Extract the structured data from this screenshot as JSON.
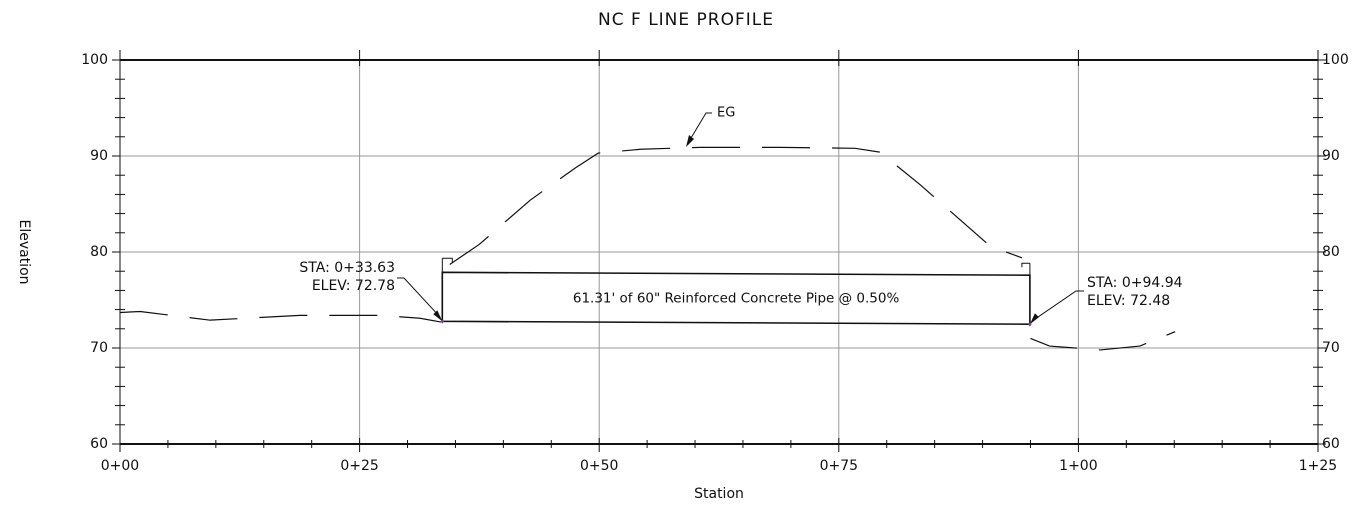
{
  "chart_data": {
    "type": "profile",
    "title": "NC F LINE PROFILE",
    "xlabel": "Station",
    "ylabel": "Elevation",
    "xlim": [
      0,
      125
    ],
    "xticks": [
      {
        "value": 0,
        "label": "0+00"
      },
      {
        "value": 25,
        "label": "0+25"
      },
      {
        "value": 50,
        "label": "0+50"
      },
      {
        "value": 75,
        "label": "0+75"
      },
      {
        "value": 100,
        "label": "1+00"
      },
      {
        "value": 125,
        "label": "1+25"
      }
    ],
    "ylim": [
      60,
      100
    ],
    "yticks": [
      60,
      70,
      80,
      90,
      100
    ],
    "grid": true,
    "series": [
      {
        "name": "EG",
        "color": "#111111",
        "x": [
          0,
          2.1,
          9.4,
          18.8,
          27.1,
          31.3,
          33.5,
          null,
          34.4,
          37.5,
          42.8,
          47.5,
          49.9,
          54.3,
          60.5,
          68.9,
          76.7,
          79.3,
          83.5,
          90.8,
          94.1,
          null,
          95.0,
          97.0,
          102.3,
          106.4,
          110.1
        ],
        "values": [
          73.7,
          73.8,
          72.9,
          73.4,
          73.4,
          73.1,
          72.7,
          null,
          78.7,
          80.8,
          85.4,
          88.75,
          90.3,
          90.7,
          90.9,
          90.9,
          90.8,
          90.4,
          87.0,
          80.6,
          79.4,
          null,
          71.0,
          70.2,
          69.8,
          70.2,
          71.7
        ]
      }
    ],
    "pipe": {
      "label": "61.31' of 60\" Reinforced Concrete Pipe @ 0.50%",
      "start": {
        "station": 33.63,
        "elevation": 72.78,
        "labels": [
          "STA: 0+33.63",
          "ELEV: 72.78"
        ]
      },
      "end": {
        "station": 94.94,
        "elevation": 72.48,
        "labels": [
          "STA: 0+94.94",
          "ELEV: 72.48"
        ]
      }
    }
  }
}
